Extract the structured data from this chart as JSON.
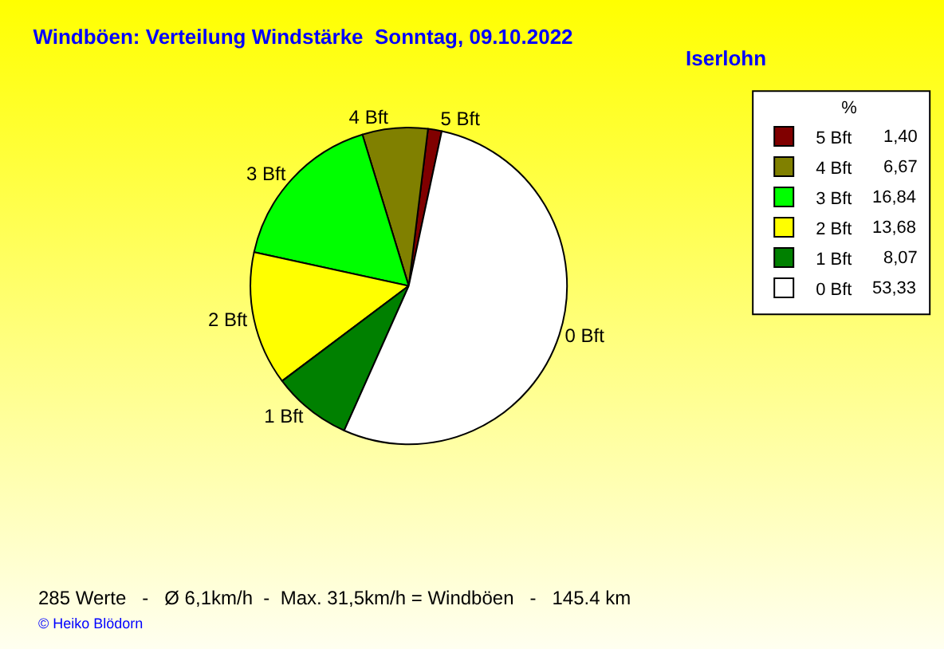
{
  "chart_data": {
    "type": "pie",
    "title": "Windböen: Verteilung Windstärke  Sonntag, 09.10.2022",
    "subtitle": "Iserlohn",
    "legend_title": "%",
    "categories": [
      "5 Bft",
      "4 Bft",
      "3 Bft",
      "2 Bft",
      "1 Bft",
      "0 Bft"
    ],
    "values": [
      1.4,
      6.67,
      16.84,
      13.68,
      8.07,
      53.33
    ],
    "value_labels": [
      "1,40",
      "6,67",
      "16,84",
      "13,68",
      "8,07",
      "53,33"
    ],
    "colors": [
      "#800000",
      "#808000",
      "#00ff00",
      "#ffff00",
      "#008000",
      "#ffffff"
    ],
    "legend": "top right",
    "annotations": [
      "285 Werte   -   Ø 6,1km/h  -  Max. 31,5km/h = Windböen   -   145.4 km",
      "© Heiko Blödorn"
    ]
  }
}
